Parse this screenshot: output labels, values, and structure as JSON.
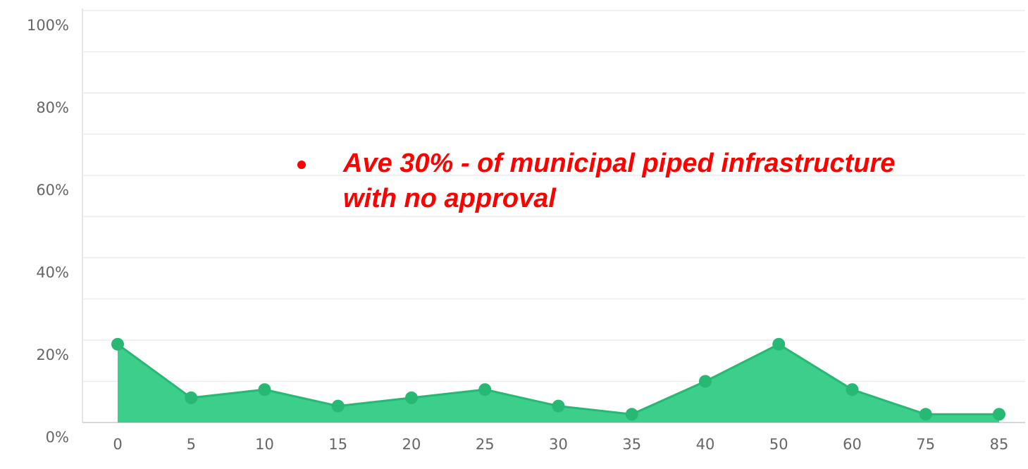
{
  "chart_data": {
    "type": "area",
    "categories": [
      "0",
      "5",
      "10",
      "15",
      "20",
      "25",
      "30",
      "35",
      "40",
      "50",
      "60",
      "75",
      "85"
    ],
    "values": [
      19,
      6,
      8,
      4,
      6,
      8,
      4,
      2,
      10,
      19,
      8,
      2,
      2
    ],
    "color": "#3ccf8c",
    "line_color": "#27b873",
    "ylim": [
      0,
      100
    ],
    "yticks": [
      {
        "value": 0,
        "label": "0%"
      },
      {
        "value": 20,
        "label": "20%"
      },
      {
        "value": 40,
        "label": "40%"
      },
      {
        "value": 60,
        "label": "60%"
      },
      {
        "value": 80,
        "label": "80%"
      },
      {
        "value": 100,
        "label": "100%"
      }
    ],
    "minor_yticks": [
      10,
      30,
      50,
      70,
      90
    ],
    "grid": true,
    "annotation": [
      "Ave 30% - of municipal piped infrastructure",
      "with no approval"
    ],
    "annotation_color": "#ff0000"
  }
}
